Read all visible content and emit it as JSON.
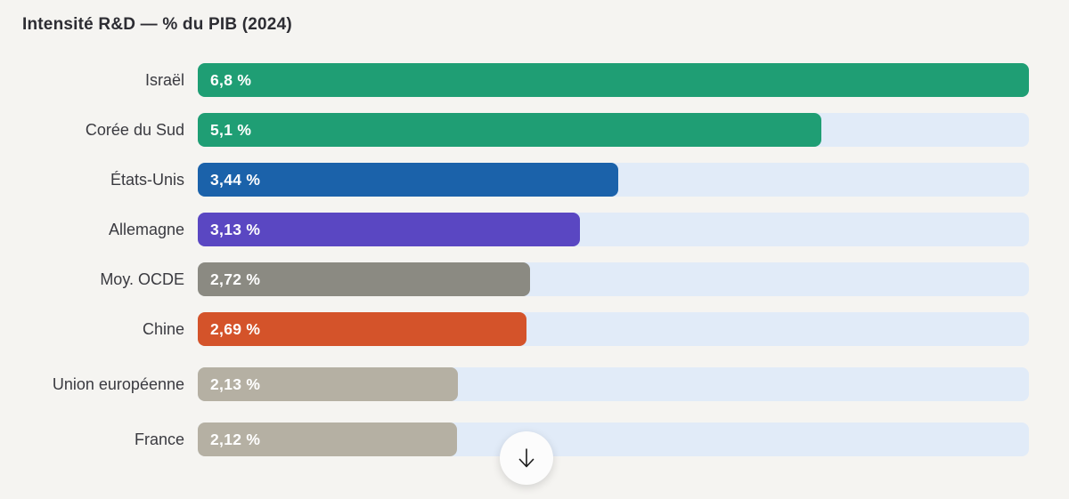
{
  "page": {
    "background": "#f5f4f1"
  },
  "title": "Intensité R&D — % du PIB (2024)",
  "chart_data": {
    "type": "bar",
    "orientation": "horizontal",
    "title": "Intensité R&D — % du PIB (2024)",
    "categories": [
      "Israël",
      "Corée du Sud",
      "États-Unis",
      "Allemagne",
      "Moy. OCDE",
      "Chine",
      "Union européenne",
      "France"
    ],
    "values": [
      6.8,
      5.1,
      3.44,
      3.13,
      2.72,
      2.69,
      2.13,
      2.12
    ],
    "value_labels": [
      "6,8 %",
      "5,1 %",
      "3,44 %",
      "3,13 %",
      "2,72 %",
      "2,69 %",
      "2,13 %",
      "2,12 %"
    ],
    "bar_colors": [
      "#1f9e74",
      "#1f9e74",
      "#1b62aa",
      "#5a47c2",
      "#8b8a82",
      "#d4532a",
      "#b5b0a3",
      "#b5b0a3"
    ],
    "track_color": "#e1ebf8",
    "xlim": [
      0,
      6.8
    ],
    "grid": false,
    "legend": false,
    "value_text_color": "#ffffff",
    "label_text_color": "#3a3a40"
  },
  "scroll_button": {
    "icon": "arrow-down"
  }
}
